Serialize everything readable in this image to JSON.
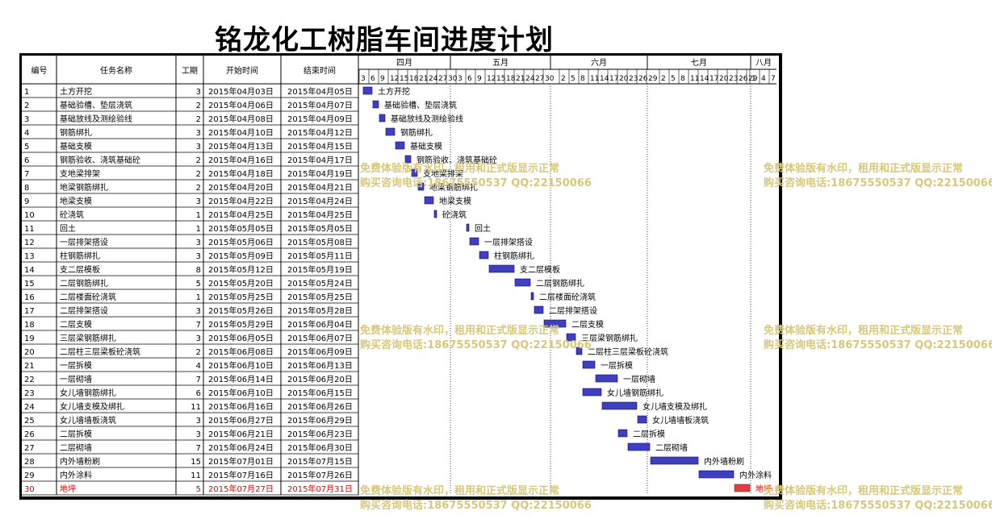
{
  "title": "铭龙化工树脂车间进度计划",
  "headers": {
    "id": "编号",
    "name": "任务名称",
    "dur": "工期",
    "start": "开始时间",
    "end": "结束时间"
  },
  "months": [
    {
      "label": "四月",
      "days": [
        "3",
        "6",
        "9",
        "12",
        "15",
        "18",
        "21",
        "24",
        "27",
        "30"
      ]
    },
    {
      "label": "五月",
      "days": [
        "3",
        "6",
        "9",
        "12",
        "15",
        "18",
        "21",
        "24",
        "27",
        "30"
      ]
    },
    {
      "label": "六月",
      "days": [
        "2",
        "5",
        "8",
        "11",
        "14",
        "17",
        "20",
        "23",
        "26",
        "29"
      ]
    },
    {
      "label": "七月",
      "days": [
        "2",
        "5",
        "8",
        "11",
        "14",
        "17",
        "20",
        "23",
        "26",
        "29"
      ]
    },
    {
      "label": "八月",
      "days": [
        "1",
        "4",
        "7"
      ]
    }
  ],
  "watermark": {
    "line1": "免费体验版有水印，租用和正式版显示正常",
    "line2": "购买咨询电话:18675550537 QQ:22150066"
  },
  "colors": {
    "bar": "#3f3fbf",
    "critical_bar": "#e04040",
    "critical_text": "#e00000",
    "watermark": "#d6c87a"
  },
  "chart_data": {
    "type": "gantt",
    "axis_start": "2015-04-02",
    "tasks": [
      {
        "id": "1",
        "name": "土方开挖",
        "dur": "3",
        "start": "2015年04月03日",
        "end": "2015年04月05日",
        "s": "2015-04-03",
        "e": "2015-04-05"
      },
      {
        "id": "2",
        "name": "基础验槽、垫层浇筑",
        "dur": "2",
        "start": "2015年04月06日",
        "end": "2015年04月07日",
        "s": "2015-04-06",
        "e": "2015-04-07"
      },
      {
        "id": "3",
        "name": "基础放线及测绘验线",
        "dur": "2",
        "start": "2015年04月08日",
        "end": "2015年04月09日",
        "s": "2015-04-08",
        "e": "2015-04-09"
      },
      {
        "id": "4",
        "name": "钢筋绑扎",
        "dur": "3",
        "start": "2015年04月10日",
        "end": "2015年04月12日",
        "s": "2015-04-10",
        "e": "2015-04-12"
      },
      {
        "id": "5",
        "name": "基础支模",
        "dur": "3",
        "start": "2015年04月13日",
        "end": "2015年04月15日",
        "s": "2015-04-13",
        "e": "2015-04-15"
      },
      {
        "id": "6",
        "name": "钢筋验收、浇筑基础砼",
        "dur": "2",
        "start": "2015年04月16日",
        "end": "2015年04月17日",
        "s": "2015-04-16",
        "e": "2015-04-17"
      },
      {
        "id": "7",
        "name": "支地梁排架",
        "dur": "2",
        "start": "2015年04月18日",
        "end": "2015年04月19日",
        "s": "2015-04-18",
        "e": "2015-04-19"
      },
      {
        "id": "8",
        "name": "地梁钢筋绑扎",
        "dur": "2",
        "start": "2015年04月20日",
        "end": "2015年04月21日",
        "s": "2015-04-20",
        "e": "2015-04-21"
      },
      {
        "id": "9",
        "name": "地梁支模",
        "dur": "3",
        "start": "2015年04月22日",
        "end": "2015年04月24日",
        "s": "2015-04-22",
        "e": "2015-04-24"
      },
      {
        "id": "10",
        "name": "砼浇筑",
        "dur": "1",
        "start": "2015年04月25日",
        "end": "2015年04月25日",
        "s": "2015-04-25",
        "e": "2015-04-25"
      },
      {
        "id": "11",
        "name": "回土",
        "dur": "1",
        "start": "2015年05月05日",
        "end": "2015年05月05日",
        "s": "2015-05-05",
        "e": "2015-05-05"
      },
      {
        "id": "12",
        "name": "一层排架搭设",
        "dur": "3",
        "start": "2015年05月06日",
        "end": "2015年05月08日",
        "s": "2015-05-06",
        "e": "2015-05-08"
      },
      {
        "id": "13",
        "name": "柱钢筋绑扎",
        "dur": "3",
        "start": "2015年05月09日",
        "end": "2015年05月11日",
        "s": "2015-05-09",
        "e": "2015-05-11"
      },
      {
        "id": "14",
        "name": "支二层模板",
        "dur": "8",
        "start": "2015年05月12日",
        "end": "2015年05月19日",
        "s": "2015-05-12",
        "e": "2015-05-19"
      },
      {
        "id": "15",
        "name": "二层钢筋绑扎",
        "dur": "5",
        "start": "2015年05月20日",
        "end": "2015年05月24日",
        "s": "2015-05-20",
        "e": "2015-05-24"
      },
      {
        "id": "16",
        "name": "二层楼面砼浇筑",
        "dur": "1",
        "start": "2015年05月25日",
        "end": "2015年05月25日",
        "s": "2015-05-25",
        "e": "2015-05-25"
      },
      {
        "id": "17",
        "name": "二层排架搭设",
        "dur": "3",
        "start": "2015年05月26日",
        "end": "2015年05月28日",
        "s": "2015-05-26",
        "e": "2015-05-28"
      },
      {
        "id": "18",
        "name": "二层支模",
        "dur": "7",
        "start": "2015年05月29日",
        "end": "2015年06月04日",
        "s": "2015-05-29",
        "e": "2015-06-04"
      },
      {
        "id": "19",
        "name": "三层梁钢筋绑扎",
        "dur": "3",
        "start": "2015年06月05日",
        "end": "2015年06月07日",
        "s": "2015-06-05",
        "e": "2015-06-07"
      },
      {
        "id": "20",
        "name": "二层柱三层梁板砼浇筑",
        "dur": "2",
        "start": "2015年06月08日",
        "end": "2015年06月09日",
        "s": "2015-06-08",
        "e": "2015-06-09"
      },
      {
        "id": "21",
        "name": "一层拆模",
        "dur": "4",
        "start": "2015年06月10日",
        "end": "2015年06月13日",
        "s": "2015-06-10",
        "e": "2015-06-13"
      },
      {
        "id": "22",
        "name": "一层砌墙",
        "dur": "7",
        "start": "2015年06月14日",
        "end": "2015年06月20日",
        "s": "2015-06-14",
        "e": "2015-06-20"
      },
      {
        "id": "23",
        "name": "女儿墙钢筋绑扎",
        "dur": "6",
        "start": "2015年06月10日",
        "end": "2015年06月15日",
        "s": "2015-06-10",
        "e": "2015-06-15"
      },
      {
        "id": "24",
        "name": "女儿墙支模及绑扎",
        "dur": "11",
        "start": "2015年06月16日",
        "end": "2015年06月26日",
        "s": "2015-06-16",
        "e": "2015-06-26"
      },
      {
        "id": "25",
        "name": "女儿墙墙板浇筑",
        "dur": "3",
        "start": "2015年06月27日",
        "end": "2015年06月29日",
        "s": "2015-06-27",
        "e": "2015-06-29"
      },
      {
        "id": "26",
        "name": "二层拆模",
        "dur": "3",
        "start": "2015年06月21日",
        "end": "2015年06月23日",
        "s": "2015-06-21",
        "e": "2015-06-23"
      },
      {
        "id": "27",
        "name": "二层砌墙",
        "dur": "7",
        "start": "2015年06月24日",
        "end": "2015年06月30日",
        "s": "2015-06-24",
        "e": "2015-06-30"
      },
      {
        "id": "28",
        "name": "内外墙粉刷",
        "dur": "15",
        "start": "2015年07月01日",
        "end": "2015年07月15日",
        "s": "2015-07-01",
        "e": "2015-07-15"
      },
      {
        "id": "29",
        "name": "内外涂料",
        "dur": "11",
        "start": "2015年07月16日",
        "end": "2015年07月26日",
        "s": "2015-07-16",
        "e": "2015-07-26"
      },
      {
        "id": "30",
        "name": "地坪",
        "dur": "5",
        "start": "2015年07月27日",
        "end": "2015年07月31日",
        "s": "2015-07-27",
        "e": "2015-07-31",
        "critical": true
      }
    ]
  }
}
